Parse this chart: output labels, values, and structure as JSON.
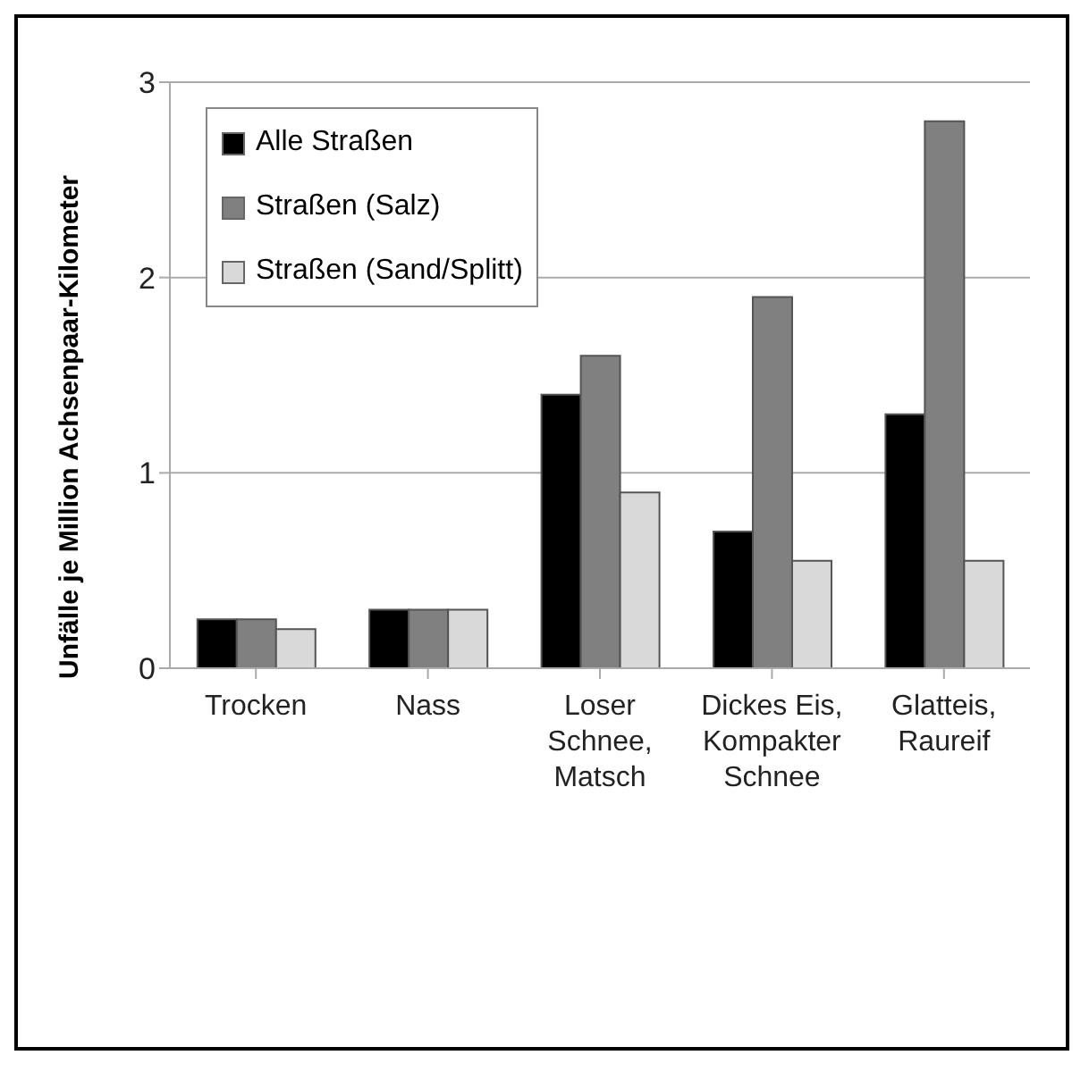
{
  "chart_data": {
    "type": "bar",
    "ylabel": "Unfälle je Million Achsenpaar-Kilometer",
    "categories": [
      "Trocken",
      "Nass",
      "Loser\nSchnee,\nMatsch",
      "Dickes Eis,\nKompakter\nSchnee",
      "Glatteis,\nRaureif"
    ],
    "series": [
      {
        "name": "Alle Straßen",
        "color": "#000000",
        "values": [
          0.25,
          0.3,
          1.4,
          0.7,
          1.3
        ]
      },
      {
        "name": "Straßen (Salz)",
        "color": "#808080",
        "values": [
          0.25,
          0.3,
          1.6,
          1.9,
          2.8
        ]
      },
      {
        "name": "Straßen (Sand/Splitt)",
        "color": "#d9d9d9",
        "values": [
          0.2,
          0.3,
          0.9,
          0.55,
          0.55
        ]
      }
    ],
    "ylim": [
      0,
      3
    ],
    "yticks": [
      0,
      1,
      2,
      3
    ],
    "grid": "y",
    "legend": "top left"
  }
}
